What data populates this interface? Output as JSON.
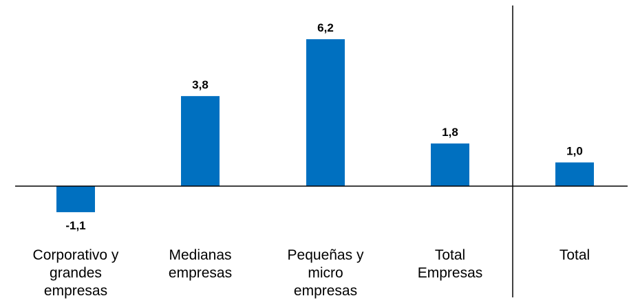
{
  "chart_data": {
    "type": "bar",
    "categories": [
      [
        "Corporativo y",
        "grandes",
        "empresas"
      ],
      [
        "Medianas",
        "empresas"
      ],
      [
        "Pequeñas y",
        "micro",
        "empresas"
      ],
      [
        "Total",
        "Empresas"
      ],
      [
        "Total"
      ]
    ],
    "values": [
      -1.1,
      3.8,
      6.2,
      1.8,
      1.0
    ],
    "value_labels": [
      "-1,1",
      "3,8",
      "6,2",
      "1,8",
      "1,0"
    ],
    "title": "",
    "xlabel": "",
    "ylabel": "",
    "ylim": [
      -1.1,
      6.2
    ],
    "grid": false,
    "separator_after_category": 3,
    "colors": {
      "bar": "#0070C0",
      "axis": "#000000",
      "text": "#000000"
    }
  }
}
